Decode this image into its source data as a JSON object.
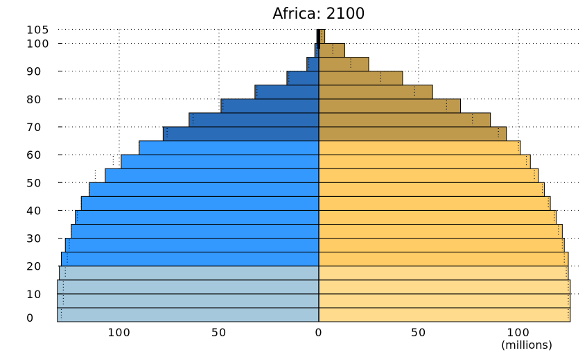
{
  "chart_data": {
    "type": "bar",
    "orientation": "horizontal-pyramid",
    "title": "Africa: 2100",
    "x_unit_label": "(millions)",
    "xlim": [
      -130,
      130
    ],
    "ylim": [
      0,
      105
    ],
    "x_ticks": [
      {
        "value": -100,
        "label": "100"
      },
      {
        "value": -50,
        "label": "50"
      },
      {
        "value": 0,
        "label": "0"
      },
      {
        "value": 50,
        "label": "50"
      },
      {
        "value": 100,
        "label": "100"
      }
    ],
    "y_ticks": [
      {
        "value": 0,
        "label": "0"
      },
      {
        "value": 10,
        "label": "10"
      },
      {
        "value": 20,
        "label": "20"
      },
      {
        "value": 30,
        "label": "30"
      },
      {
        "value": 40,
        "label": "40"
      },
      {
        "value": 50,
        "label": "50"
      },
      {
        "value": 60,
        "label": "60"
      },
      {
        "value": 70,
        "label": "70"
      },
      {
        "value": 80,
        "label": "80"
      },
      {
        "value": 90,
        "label": "90"
      },
      {
        "value": 100,
        "label": "100"
      },
      {
        "value": 105,
        "label": "105"
      }
    ],
    "grid": true,
    "age_groups": [
      0,
      5,
      10,
      15,
      20,
      25,
      30,
      35,
      40,
      45,
      50,
      55,
      60,
      65,
      70,
      75,
      80,
      85,
      90,
      95,
      100
    ],
    "series": [
      {
        "side": "left",
        "values": [
          131,
          131,
          131,
          130,
          129,
          127,
          124,
          122,
          119,
          115,
          107,
          99,
          90,
          78,
          65,
          49,
          32,
          16,
          6,
          2,
          1
        ],
        "comparison_markers": [
          129,
          128,
          128,
          127,
          126,
          125,
          124,
          121,
          119,
          115,
          112,
          103,
          90,
          76,
          63,
          48,
          31,
          15,
          5,
          1,
          0.4
        ],
        "colors": {
          "youth": "#a5c8dc",
          "working": "#3399ff",
          "elderly": "#2b6cb8"
        }
      },
      {
        "side": "right",
        "values": [
          126,
          126,
          126,
          125,
          125,
          123,
          122,
          119,
          116,
          113,
          110,
          106,
          101,
          94,
          86,
          71,
          57,
          42,
          25,
          13,
          3
        ],
        "comparison_markers": [
          125,
          125,
          125,
          124,
          123,
          122,
          120,
          118,
          115,
          112,
          108,
          104,
          100,
          90,
          77,
          64,
          48,
          31,
          16,
          7,
          1.5
        ],
        "colors": {
          "youth": "#ffdb8e",
          "working": "#ffcc66",
          "elderly": "#bf9a4d"
        }
      }
    ]
  }
}
